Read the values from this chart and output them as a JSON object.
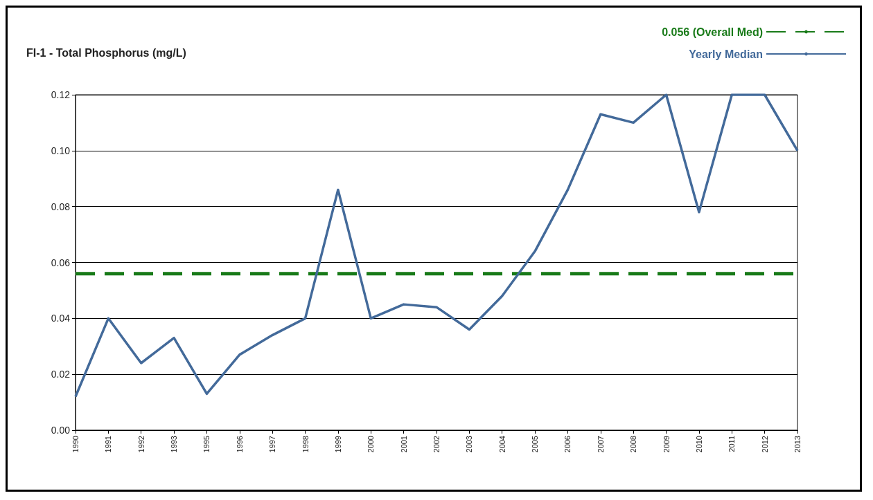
{
  "chart_data": {
    "type": "line",
    "title": "FI-1 - Total Phosphorus (mg/L)",
    "categories": [
      "1990",
      "1991",
      "1992",
      "1993",
      "1995",
      "1996",
      "1997",
      "1998",
      "1999",
      "2000",
      "2001",
      "2002",
      "2003",
      "2004",
      "2005",
      "2006",
      "2007",
      "2008",
      "2009",
      "2010",
      "2011",
      "2012",
      "2013"
    ],
    "series": [
      {
        "name": "0.056 (Overall Med)",
        "color": "#187a18",
        "line_style": "dashed",
        "values": [
          0.056,
          0.056,
          0.056,
          0.056,
          0.056,
          0.056,
          0.056,
          0.056,
          0.056,
          0.056,
          0.056,
          0.056,
          0.056,
          0.056,
          0.056,
          0.056,
          0.056,
          0.056,
          0.056,
          0.056,
          0.056,
          0.056,
          0.056
        ]
      },
      {
        "name": "Yearly Median",
        "color": "#436a9a",
        "line_style": "solid",
        "values": [
          0.012,
          0.04,
          0.024,
          0.033,
          0.013,
          0.027,
          0.034,
          0.04,
          0.086,
          0.04,
          0.045,
          0.044,
          0.036,
          0.048,
          0.064,
          0.086,
          0.113,
          0.11,
          0.12,
          0.078,
          0.12,
          0.12,
          0.1
        ]
      }
    ],
    "ylim": [
      0,
      0.12
    ],
    "yticks": [
      {
        "value": 0,
        "label": "0.00"
      },
      {
        "value": 0.02,
        "label": "0.02"
      },
      {
        "value": 0.04,
        "label": "0.04"
      },
      {
        "value": 0.06,
        "label": "0.06"
      },
      {
        "value": 0.08,
        "label": "0.08"
      },
      {
        "value": 0.1,
        "label": "0.10"
      },
      {
        "value": 0.12,
        "label": "0.12"
      }
    ],
    "grid": "y",
    "legend": "top right",
    "marker": "none"
  }
}
